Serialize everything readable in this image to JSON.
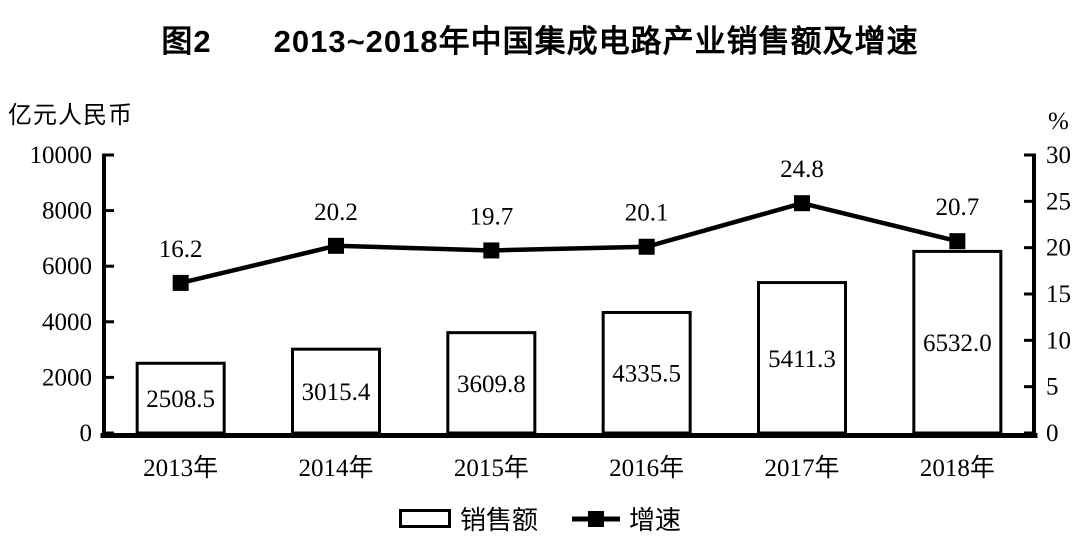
{
  "header": {
    "figure_label": "图2",
    "title": "2013~2018年中国集成电路产业销售额及增速"
  },
  "axes": {
    "left_unit": "亿元人民币",
    "right_unit": "%"
  },
  "legend": {
    "sales_label": "销售额",
    "growth_label": "增速"
  },
  "chart_data": {
    "type": "combo",
    "title": "图2 2013~2018年中国集成电路产业销售额及增速",
    "categories": [
      "2013年",
      "2014年",
      "2015年",
      "2016年",
      "2017年",
      "2018年"
    ],
    "series": [
      {
        "name": "销售额",
        "type": "bar",
        "axis": "left",
        "values": [
          2508.5,
          3015.4,
          3609.8,
          4335.5,
          5411.3,
          6532.0
        ]
      },
      {
        "name": "增速",
        "type": "line",
        "axis": "right",
        "values": [
          16.2,
          20.2,
          19.7,
          20.1,
          24.8,
          20.7
        ]
      }
    ],
    "left_axis": {
      "unit": "亿元人民币",
      "min": 0,
      "max": 10000,
      "tick_step": 2000,
      "ticks": [
        0,
        2000,
        4000,
        6000,
        8000,
        10000
      ]
    },
    "right_axis": {
      "unit": "%",
      "min": 0,
      "max": 30,
      "tick_step": 5,
      "ticks": [
        0,
        5,
        10,
        15,
        20,
        25,
        30
      ]
    },
    "legend_position": "bottom",
    "grid": false,
    "colors": {
      "foreground": "#000000",
      "background": "#ffffff",
      "bar_fill": "#ffffff",
      "bar_border": "#000000",
      "line": "#000000",
      "marker": "#000000"
    }
  }
}
